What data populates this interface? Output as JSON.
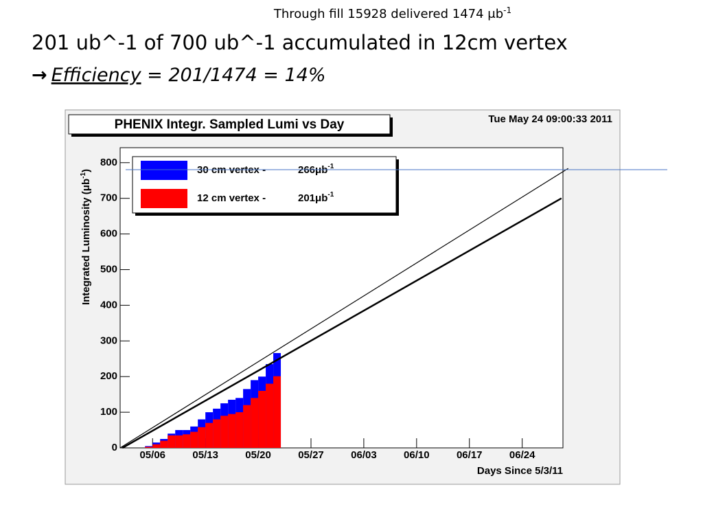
{
  "slide": {
    "note": "Through fill 15928 delivered 1474 μb",
    "note_sup": "-1",
    "headline": "201 ub^-1 of 700 ub^-1 accumulated in 12cm vertex",
    "arrow": "→",
    "efficiency_word": "Efficiency",
    "efficiency_rest": " = 201/1474 = 14%"
  },
  "chart_data": {
    "type": "histogram",
    "title": "PHENIX Integr. Sampled Lumi vs Day",
    "timestamp": "Tue May 24 09:00:33 2011",
    "y_label": "Integrated Luminosity (μb",
    "y_label_sup": "-1",
    "y_label_end": ")",
    "x_label": "Days Since 5/3/11",
    "xlim": [
      -1.3,
      57.4
    ],
    "ylim": [
      0,
      842
    ],
    "xticks": [
      {
        "value": 3,
        "label": "05/06"
      },
      {
        "value": 10,
        "label": "05/13"
      },
      {
        "value": 17,
        "label": "05/20"
      },
      {
        "value": 24,
        "label": "05/27"
      },
      {
        "value": 31,
        "label": "06/03"
      },
      {
        "value": 38,
        "label": "06/10"
      },
      {
        "value": 45,
        "label": "06/17"
      },
      {
        "value": 52,
        "label": "06/24"
      }
    ],
    "yticks": [
      0,
      100,
      200,
      300,
      400,
      500,
      600,
      700,
      800
    ],
    "bins": [
      2,
      3,
      4,
      5,
      6,
      7,
      8,
      9,
      10,
      11,
      12,
      13,
      14,
      15,
      16,
      17,
      18,
      19,
      20
    ],
    "series": [
      {
        "name": "30 cm vertex -",
        "color": "#0000ff",
        "legend_value": 266,
        "legend_unit": "μb",
        "legend_sup": "-1",
        "values": [
          5,
          15,
          25,
          40,
          50,
          50,
          60,
          80,
          100,
          110,
          125,
          135,
          140,
          165,
          190,
          200,
          235,
          266
        ]
      },
      {
        "name": "12 cm vertex -",
        "color": "#ff0000",
        "legend_value": 201,
        "legend_unit": "μb",
        "legend_sup": "-1",
        "values": [
          3,
          10,
          20,
          35,
          35,
          38,
          45,
          58,
          70,
          80,
          90,
          95,
          100,
          120,
          140,
          160,
          180,
          201
        ]
      }
    ],
    "lines": [
      {
        "color": "#000000",
        "width": 1.2,
        "x": [
          -1.3,
          58.1
        ],
        "y": [
          0,
          784
        ]
      },
      {
        "color": "#000000",
        "width": 2.5,
        "x": [
          -1,
          57.2
        ],
        "y": [
          0,
          700
        ]
      }
    ]
  }
}
